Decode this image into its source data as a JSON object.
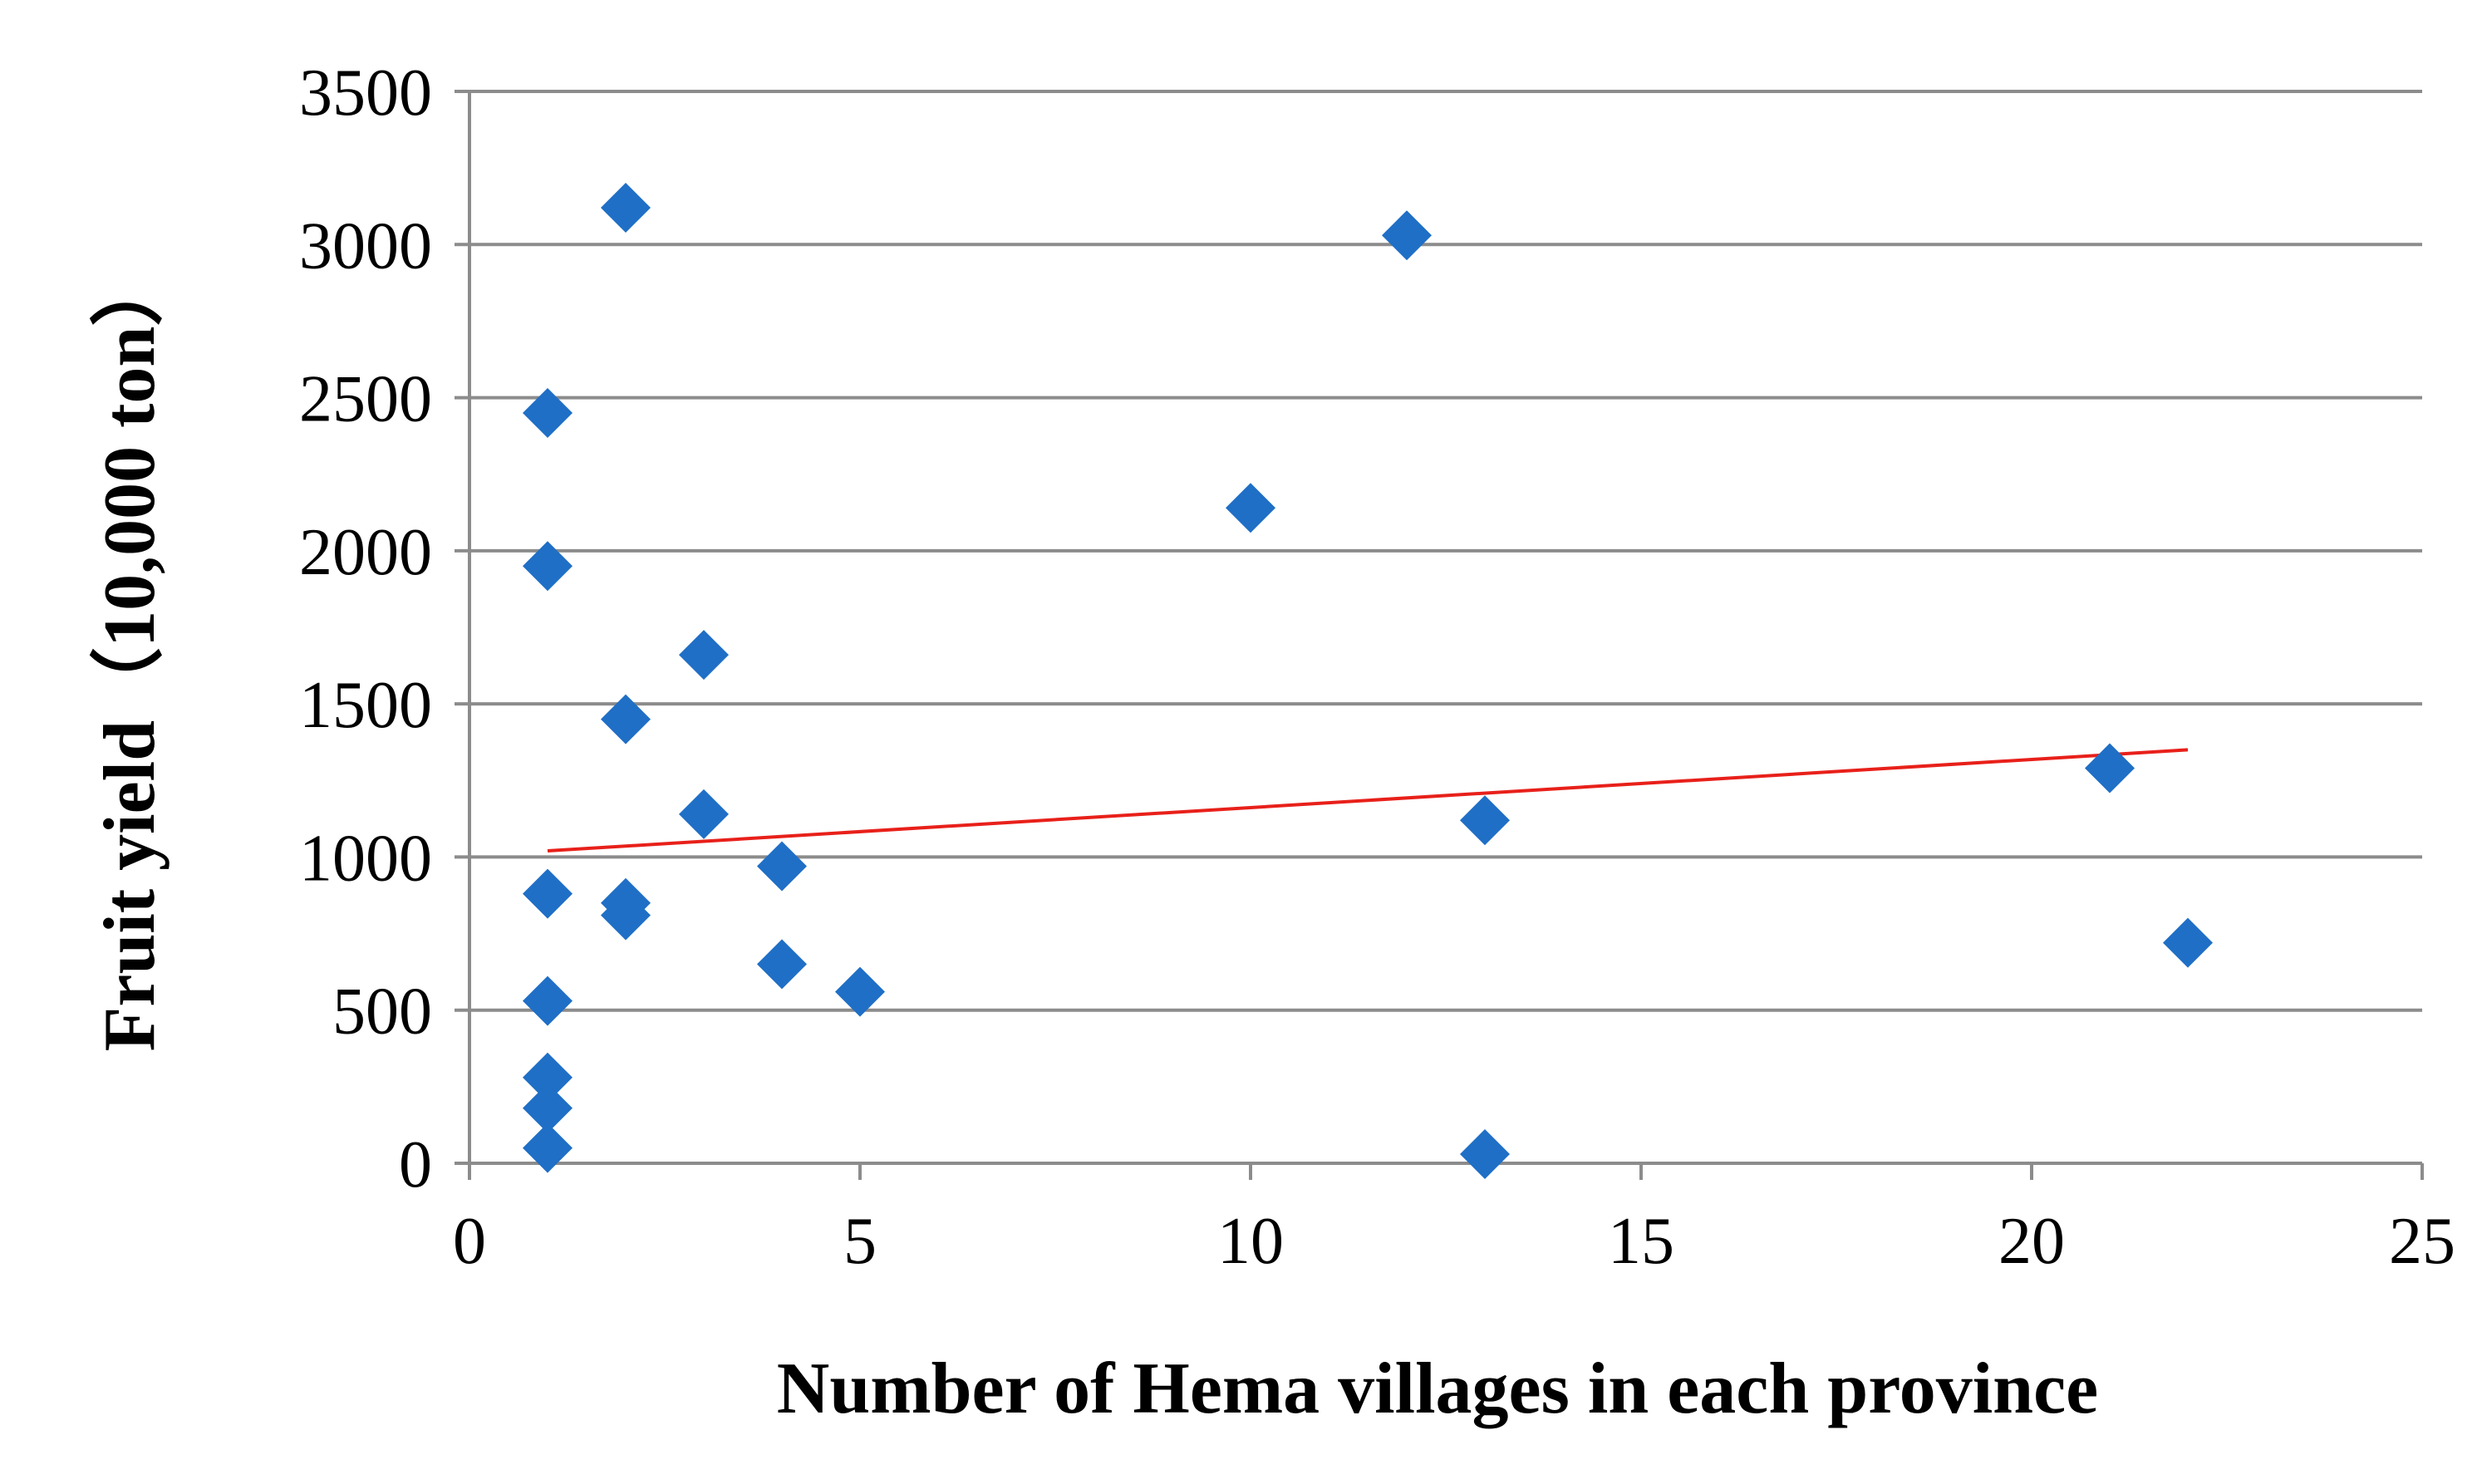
{
  "chart_data": {
    "type": "scatter",
    "xlabel": "Number of Hema villages in each province",
    "ylabel": "Fruit yield（10,000 ton）",
    "xlim": [
      0,
      25
    ],
    "ylim": [
      0,
      3500
    ],
    "x_ticks": [
      0,
      5,
      10,
      15,
      20,
      25
    ],
    "y_ticks": [
      0,
      500,
      1000,
      1500,
      2000,
      2500,
      3000,
      3500
    ],
    "grid": "horizontal",
    "legend": "none",
    "series": [
      {
        "marker": "diamond",
        "color": "#1F6FC6",
        "points": [
          {
            "x": 1,
            "y": 2450
          },
          {
            "x": 1,
            "y": 1950
          },
          {
            "x": 1,
            "y": 880
          },
          {
            "x": 1,
            "y": 530
          },
          {
            "x": 1,
            "y": 280
          },
          {
            "x": 1,
            "y": 180
          },
          {
            "x": 1,
            "y": 50
          },
          {
            "x": 2,
            "y": 3120
          },
          {
            "x": 2,
            "y": 1450
          },
          {
            "x": 2,
            "y": 850
          },
          {
            "x": 2,
            "y": 810
          },
          {
            "x": 3,
            "y": 1660
          },
          {
            "x": 3,
            "y": 1140
          },
          {
            "x": 4,
            "y": 970
          },
          {
            "x": 4,
            "y": 650
          },
          {
            "x": 5,
            "y": 560
          },
          {
            "x": 10,
            "y": 2140
          },
          {
            "x": 12,
            "y": 3030
          },
          {
            "x": 13,
            "y": 1120
          },
          {
            "x": 13,
            "y": 30
          },
          {
            "x": 21,
            "y": 1290
          },
          {
            "x": 22,
            "y": 720
          }
        ]
      }
    ],
    "trendline": {
      "type": "linear",
      "color": "#E8201A",
      "x": [
        1,
        22
      ],
      "y": [
        1020,
        1350
      ]
    },
    "colors": {
      "grid": "#8C8C8C",
      "axis": "#8C8C8C"
    }
  }
}
